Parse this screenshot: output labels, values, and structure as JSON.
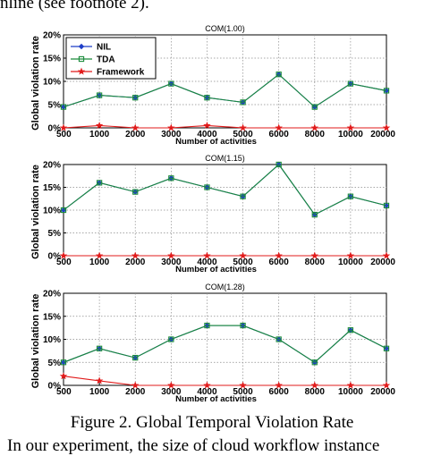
{
  "text": {
    "top": "nline (see footnote 2).",
    "caption": "Figure 2. Global Temporal Violation Rate",
    "bottom": "In our experiment, the size of cloud workflow instance"
  },
  "colors": {
    "NIL": "#1f3fc8",
    "TDA": "#1a8a3a",
    "Framework": "#e11b1b",
    "grid": "#8c8c8c"
  },
  "chart_data": [
    {
      "type": "line",
      "title": "COM(1.00)",
      "xlabel": "Number of activities",
      "ylabel": "Global violation rate",
      "categories": [
        "500",
        "1000",
        "2000",
        "3000",
        "4000",
        "5000",
        "6000",
        "8000",
        "10000",
        "20000"
      ],
      "yticks": [
        "0%",
        "5%",
        "10%",
        "15%",
        "20%"
      ],
      "ylim": [
        0,
        20
      ],
      "grid": true,
      "legend": {
        "position": "top-left",
        "entries": [
          "NIL",
          "TDA",
          "Framework"
        ]
      },
      "series": [
        {
          "name": "NIL",
          "values": [
            4.5,
            7,
            6.5,
            9.5,
            6.5,
            5.5,
            11.5,
            4.5,
            9.5,
            8
          ]
        },
        {
          "name": "TDA",
          "values": [
            4.5,
            7,
            6.5,
            9.5,
            6.5,
            5.5,
            11.5,
            4.5,
            9.5,
            8
          ]
        },
        {
          "name": "Framework",
          "values": [
            0,
            0.5,
            0,
            0,
            0.5,
            0,
            0,
            0,
            0,
            0
          ]
        }
      ]
    },
    {
      "type": "line",
      "title": "COM(1.15)",
      "xlabel": "Number of activities",
      "ylabel": "Global violation rate",
      "categories": [
        "500",
        "1000",
        "2000",
        "3000",
        "4000",
        "5000",
        "6000",
        "8000",
        "10000",
        "20000"
      ],
      "yticks": [
        "0%",
        "5%",
        "10%",
        "15%",
        "20%"
      ],
      "ylim": [
        0,
        20
      ],
      "grid": true,
      "series": [
        {
          "name": "NIL",
          "values": [
            10,
            16,
            14,
            17,
            15,
            13,
            20,
            9,
            13,
            11
          ]
        },
        {
          "name": "TDA",
          "values": [
            10,
            16,
            14,
            17,
            15,
            13,
            20,
            9,
            13,
            11
          ]
        },
        {
          "name": "Framework",
          "values": [
            0,
            0,
            0,
            0,
            0,
            0,
            0,
            0,
            0,
            0
          ]
        }
      ]
    },
    {
      "type": "line",
      "title": "COM(1.28)",
      "xlabel": "Number of activities",
      "ylabel": "Global violation rate",
      "categories": [
        "500",
        "1000",
        "2000",
        "3000",
        "4000",
        "5000",
        "6000",
        "8000",
        "10000",
        "20000"
      ],
      "yticks": [
        "0%",
        "5%",
        "10%",
        "15%",
        "20%"
      ],
      "ylim": [
        0,
        20
      ],
      "grid": true,
      "series": [
        {
          "name": "NIL",
          "values": [
            5,
            8,
            6,
            10,
            13,
            13,
            10,
            5,
            12,
            8
          ]
        },
        {
          "name": "TDA",
          "values": [
            5,
            8,
            6,
            10,
            13,
            13,
            10,
            5,
            12,
            8
          ]
        },
        {
          "name": "Framework",
          "values": [
            2,
            1,
            0,
            0,
            0,
            0,
            0,
            0,
            0,
            0
          ]
        }
      ]
    }
  ]
}
